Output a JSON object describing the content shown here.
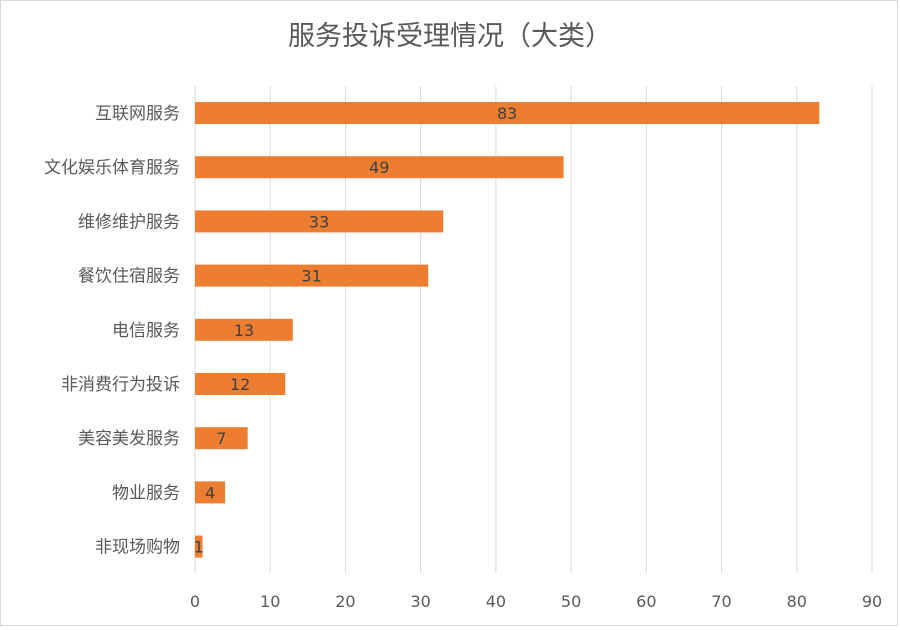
{
  "chart_data": {
    "type": "bar",
    "orientation": "horizontal",
    "title": "服务投诉受理情况（大类）",
    "categories": [
      "互联网服务",
      "文化娱乐体育服务",
      "维修维护服务",
      "餐饮住宿服务",
      "电信服务",
      "非消费行为投诉",
      "美容美发服务",
      "物业服务",
      "非现场购物"
    ],
    "values": [
      83,
      49,
      33,
      31,
      13,
      12,
      7,
      4,
      1
    ],
    "xlim": [
      0,
      90
    ],
    "xticks": [
      0,
      10,
      20,
      30,
      40,
      50,
      60,
      70,
      80,
      90
    ],
    "grid": true,
    "legend": "none",
    "xlabel": "",
    "ylabel": "",
    "bar_color": "#ED7D31"
  }
}
